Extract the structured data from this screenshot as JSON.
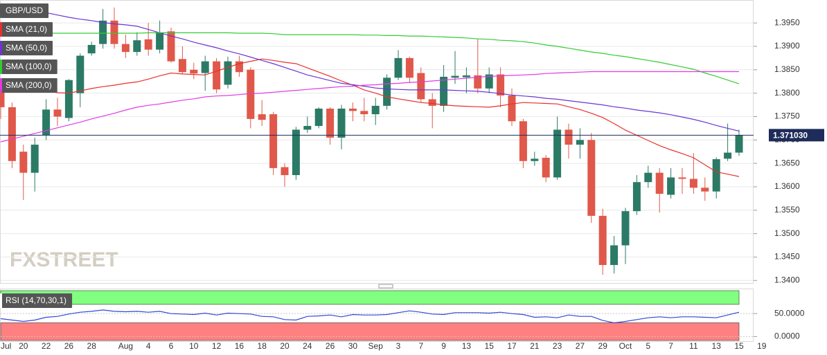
{
  "chart_data": [
    {
      "type": "candlestick",
      "title": "GBP/USD",
      "watermark": "FXSTREET",
      "categories": [
        "Jul",
        null,
        "20",
        null,
        "22",
        null,
        "26",
        null,
        "28",
        null,
        null,
        "Aug",
        null,
        "4",
        null,
        "6",
        null,
        "10",
        null,
        "12",
        null,
        "16",
        null,
        "18",
        null,
        "20",
        null,
        "24",
        null,
        "26",
        null,
        "30",
        null,
        "Sep",
        null,
        "3",
        null,
        "7",
        null,
        "9",
        null,
        "13",
        null,
        "15",
        null,
        "17",
        null,
        "21",
        null,
        "23",
        null,
        "27",
        null,
        "29",
        null,
        "Oct",
        null,
        "5",
        null,
        "7",
        null,
        "11",
        null,
        "13",
        null,
        "15",
        null,
        "19"
      ],
      "open": [
        1.3805,
        1.377,
        1.3675,
        1.363,
        1.371,
        1.3765,
        1.3747,
        1.38,
        1.3885,
        1.3905,
        1.3955,
        1.3905,
        1.3888,
        1.3915,
        1.3893,
        1.3932,
        1.3873,
        1.385,
        1.3843,
        1.3868,
        1.3818,
        1.3868,
        1.385,
        1.3755,
        1.3755,
        1.3642,
        1.3625,
        1.3722,
        1.373,
        1.3767,
        1.3705,
        1.3767,
        1.3762,
        1.3755,
        1.3773,
        1.3833,
        1.3875,
        1.3843,
        1.3787,
        1.3773,
        1.3833,
        1.3834,
        1.3838,
        1.381,
        1.384,
        1.3795,
        1.374,
        1.3655,
        1.3662,
        1.362,
        1.3722,
        1.369,
        1.37,
        1.3538,
        1.3433,
        1.3475,
        1.3548,
        1.361,
        1.363,
        1.3583,
        1.362,
        1.3617,
        1.3598,
        1.359,
        1.366,
        1.3673,
        null,
        null
      ],
      "high": [
        1.3815,
        1.378,
        1.369,
        1.3705,
        1.3787,
        1.379,
        1.383,
        1.3885,
        1.391,
        1.398,
        1.3983,
        1.3925,
        1.393,
        1.395,
        1.3955,
        1.394,
        1.39,
        1.3865,
        1.388,
        1.3875,
        1.3878,
        1.388,
        1.3855,
        1.3785,
        1.376,
        1.365,
        1.3728,
        1.375,
        1.377,
        1.377,
        1.3775,
        1.378,
        1.379,
        1.379,
        1.384,
        1.3892,
        1.3878,
        1.3855,
        1.38,
        1.386,
        1.389,
        1.3855,
        1.3915,
        1.3855,
        1.3855,
        1.381,
        1.3745,
        1.3675,
        1.3668,
        1.375,
        1.3735,
        1.3725,
        1.3715,
        1.3553,
        1.3495,
        1.3555,
        1.3625,
        1.3645,
        1.364,
        1.364,
        1.364,
        1.3672,
        1.362,
        1.3663,
        1.3735,
        1.3722,
        null,
        null
      ],
      "low": [
        1.3745,
        1.364,
        1.3572,
        1.359,
        1.37,
        1.373,
        1.374,
        1.377,
        1.388,
        1.3895,
        1.3895,
        1.3875,
        1.388,
        1.388,
        1.3885,
        1.3865,
        1.384,
        1.383,
        1.3805,
        1.38,
        1.381,
        1.3835,
        1.3725,
        1.373,
        1.3625,
        1.36,
        1.3615,
        1.3715,
        1.3725,
        1.369,
        1.368,
        1.374,
        1.374,
        1.3732,
        1.3765,
        1.3828,
        1.3822,
        1.378,
        1.3725,
        1.376,
        1.382,
        1.38,
        1.38,
        1.38,
        1.377,
        1.373,
        1.364,
        1.3645,
        1.361,
        1.3615,
        1.366,
        1.366,
        1.3523,
        1.3412,
        1.3415,
        1.3435,
        1.354,
        1.3598,
        1.3545,
        1.3575,
        1.3585,
        1.3585,
        1.357,
        1.3575,
        1.3655,
        1.3666,
        null,
        null
      ],
      "close": [
        1.377,
        1.3655,
        1.363,
        1.369,
        1.3765,
        1.375,
        1.3828,
        1.388,
        1.3903,
        1.3955,
        1.3905,
        1.3888,
        1.3913,
        1.3893,
        1.393,
        1.3868,
        1.3845,
        1.3842,
        1.3868,
        1.3808,
        1.3868,
        1.3845,
        1.3745,
        1.3743,
        1.364,
        1.3625,
        1.3722,
        1.373,
        1.3767,
        1.3705,
        1.3767,
        1.3762,
        1.3755,
        1.3773,
        1.3833,
        1.3875,
        1.3833,
        1.3787,
        1.3773,
        1.3835,
        1.3837,
        1.3838,
        1.381,
        1.384,
        1.3795,
        1.374,
        1.3655,
        1.366,
        1.362,
        1.3722,
        1.369,
        1.37,
        1.3538,
        1.3433,
        1.3475,
        1.3548,
        1.361,
        1.363,
        1.3585,
        1.362,
        1.3617,
        1.3598,
        1.359,
        1.3659,
        1.3673,
        1.371,
        null,
        null
      ],
      "up_color": "#2b7a66",
      "down_color": "#e0584a",
      "series": [
        {
          "name": "SMA (21,0)",
          "color": "#e8302a",
          "values": [
            1.3814,
            1.3813,
            1.3812,
            1.381,
            1.3806,
            1.3801,
            1.38,
            1.3805,
            1.381,
            1.3814,
            1.3817,
            1.3821,
            1.3824,
            1.383,
            1.3837,
            1.3843,
            1.3841,
            1.384,
            1.3839,
            1.3847,
            1.3855,
            1.3863,
            1.3868,
            1.3873,
            1.387,
            1.3866,
            1.3863,
            1.3854,
            1.3845,
            1.3836,
            1.3826,
            1.3817,
            1.3807,
            1.38,
            1.3792,
            1.3788,
            1.3784,
            1.378,
            1.3778,
            1.3775,
            1.3773,
            1.3772,
            1.3771,
            1.377,
            1.3773,
            1.3777,
            1.378,
            1.3779,
            1.3778,
            1.3777,
            1.3771,
            1.3765,
            1.3757,
            1.3748,
            1.3735,
            1.3721,
            1.371,
            1.3699,
            1.3688,
            1.3679,
            1.3671,
            1.3662,
            1.3647,
            1.3632,
            1.3627,
            1.3622,
            null,
            null
          ]
        },
        {
          "name": "SMA (50,0)",
          "color": "#6b34d4",
          "values": [
            1.3991,
            1.3986,
            1.3982,
            1.3977,
            1.3972,
            1.3967,
            1.3962,
            1.3958,
            1.3955,
            1.3951,
            1.3948,
            1.3946,
            1.3943,
            1.3936,
            1.3929,
            1.3922,
            1.3916,
            1.3909,
            1.3903,
            1.3897,
            1.389,
            1.3884,
            1.3877,
            1.387,
            1.3863,
            1.3855,
            1.3847,
            1.3839,
            1.3833,
            1.3827,
            1.3821,
            1.3818,
            1.3815,
            1.3811,
            1.3809,
            1.3808,
            1.3807,
            1.3807,
            1.3807,
            1.3807,
            1.3806,
            1.3805,
            1.3804,
            1.3802,
            1.3799,
            1.3796,
            1.3794,
            1.3792,
            1.3789,
            1.3787,
            1.3784,
            1.3781,
            1.3778,
            1.3775,
            1.3771,
            1.3768,
            1.3764,
            1.3761,
            1.3758,
            1.3754,
            1.3749,
            1.3744,
            1.3738,
            1.3731,
            1.3725,
            1.3719,
            null,
            null
          ]
        },
        {
          "name": "SMA (100,0)",
          "color": "#33cc33",
          "values": [
            1.3928,
            1.3928,
            1.3928,
            1.3928,
            1.3928,
            1.3928,
            1.3928,
            1.3928,
            1.3928,
            1.3928,
            1.3928,
            1.3928,
            1.3928,
            1.3929,
            1.3929,
            1.3929,
            1.3929,
            1.3929,
            1.3929,
            1.3929,
            1.3929,
            1.3928,
            1.3928,
            1.3928,
            1.3927,
            1.3925,
            1.3925,
            1.3925,
            1.3925,
            1.3925,
            1.3925,
            1.3925,
            1.3924,
            1.3924,
            1.3923,
            1.3923,
            1.3922,
            1.3922,
            1.3921,
            1.392,
            1.3919,
            1.3918,
            1.3916,
            1.3915,
            1.3913,
            1.3912,
            1.391,
            1.3907,
            1.3903,
            1.39,
            1.3896,
            1.3892,
            1.3888,
            1.3885,
            1.3881,
            1.3878,
            1.3874,
            1.387,
            1.3866,
            1.3861,
            1.3856,
            1.3851,
            1.3843,
            1.3836,
            1.3828,
            1.382,
            null,
            null
          ]
        },
        {
          "name": "SMA (200,0)",
          "color": "#e03ae0",
          "values": [
            1.3696,
            1.3702,
            1.3708,
            1.3714,
            1.372,
            1.3726,
            1.3732,
            1.3738,
            1.3745,
            1.3751,
            1.3757,
            1.3764,
            1.377,
            1.3774,
            1.3777,
            1.3781,
            1.3785,
            1.3788,
            1.3792,
            1.3794,
            1.3795,
            1.3797,
            1.3799,
            1.38,
            1.3802,
            1.3804,
            1.3806,
            1.3808,
            1.381,
            1.3812,
            1.3814,
            1.3815,
            1.3817,
            1.3818,
            1.382,
            1.3821,
            1.3823,
            1.3824,
            1.3826,
            1.3828,
            1.383,
            1.3832,
            1.3834,
            1.3836,
            1.3837,
            1.3838,
            1.3839,
            1.384,
            1.3842,
            1.3843,
            1.3844,
            1.3845,
            1.3846,
            1.3846,
            1.3846,
            1.3846,
            1.3846,
            1.3846,
            1.3846,
            1.3846,
            1.3846,
            1.3846,
            1.3846,
            1.3846,
            1.3846,
            1.3846,
            null,
            null
          ]
        }
      ],
      "last_price": {
        "value": 1.37103,
        "label": "1.371030"
      },
      "last_price_color": "#1d2c5a",
      "ylim": [
        1.3393,
        1.3999
      ],
      "yticks": [
        {
          "value": 1.34,
          "label": "1.3400"
        },
        {
          "value": 1.345,
          "label": "1.3450"
        },
        {
          "value": 1.35,
          "label": "1.3500"
        },
        {
          "value": 1.355,
          "label": "1.3550"
        },
        {
          "value": 1.36,
          "label": "1.3600"
        },
        {
          "value": 1.365,
          "label": "1.3650"
        },
        {
          "value": 1.37,
          "label": "1.3700"
        },
        {
          "value": 1.375,
          "label": "1.3750"
        },
        {
          "value": 1.38,
          "label": "1.3800"
        },
        {
          "value": 1.385,
          "label": "1.3850"
        },
        {
          "value": 1.39,
          "label": "1.3900"
        },
        {
          "value": 1.395,
          "label": "1.3950"
        }
      ],
      "grid": true
    },
    {
      "type": "line",
      "series": [
        {
          "name": "RSI (14,70,30,1)",
          "color": "#2f48d6",
          "values": [
            39,
            36,
            33,
            36,
            42,
            44,
            49,
            53,
            55,
            58,
            55,
            54,
            55,
            53,
            55,
            50,
            49,
            48,
            51,
            47,
            51,
            50,
            49,
            44,
            43,
            37,
            36,
            44,
            45,
            47,
            43,
            48,
            47,
            47,
            48,
            52,
            56,
            53,
            49,
            48,
            52,
            52,
            52,
            51,
            53,
            50,
            48,
            42,
            43,
            41,
            47,
            44,
            44,
            35,
            30,
            33,
            37,
            41,
            43,
            41,
            43,
            43,
            42,
            41,
            47,
            53,
            null,
            null
          ]
        }
      ],
      "upper_band": 70,
      "lower_band": 30,
      "upper_color": "#80ff80",
      "lower_color": "#ff8080",
      "ylim": [
        -10,
        103
      ],
      "yticks": [
        {
          "value": 0,
          "label": "0.0000"
        },
        {
          "value": 50,
          "label": "50.0000"
        }
      ]
    }
  ]
}
